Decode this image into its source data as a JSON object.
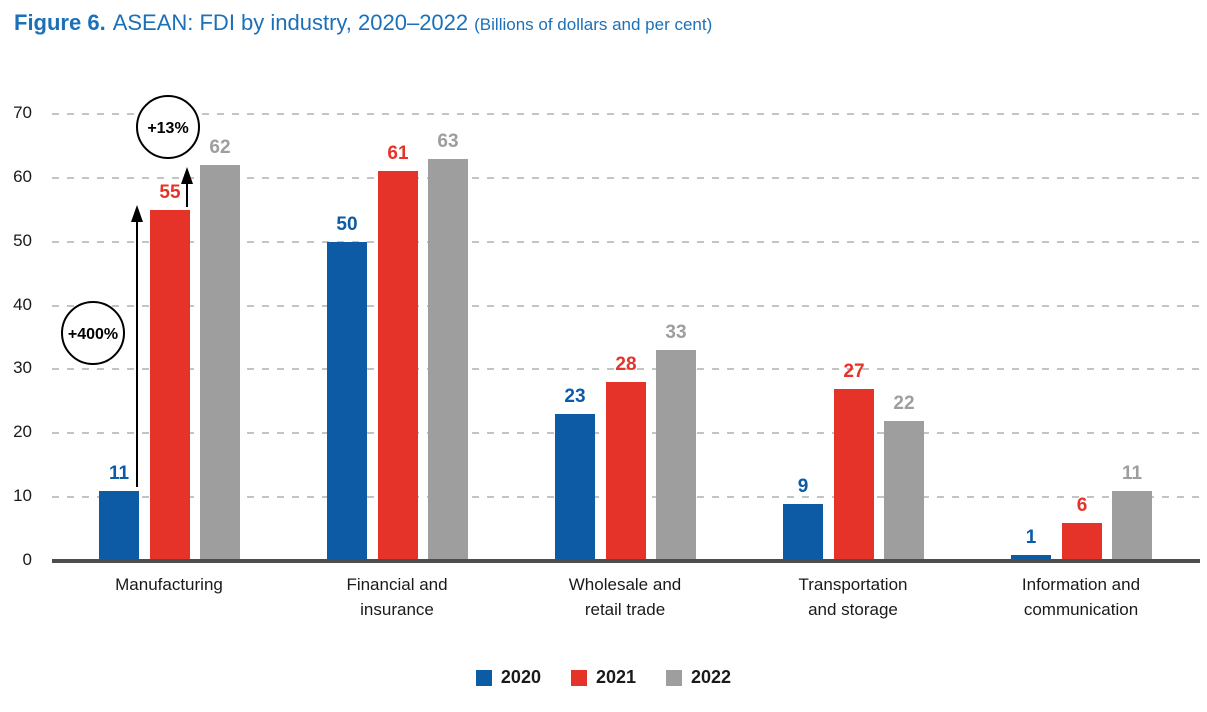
{
  "title": {
    "prefix": "Figure 6.",
    "main": "ASEAN: FDI by industry, 2020–2022",
    "unit": "(Billions of dollars and per cent)"
  },
  "colors": {
    "title_blue": "#1C70B8",
    "axis_text": "#1A1A1A",
    "axis_line": "#4D4D4D",
    "gridline": "#C4C4C4",
    "background": "#FFFFFF"
  },
  "chart_data": {
    "type": "bar",
    "title": "ASEAN: FDI by industry, 2020–2022",
    "unit_note": "Billions of dollars and per cent",
    "categories": [
      "Manufacturing",
      "Financial and\ninsurance",
      "Wholesale and\nretail trade",
      "Transportation\nand storage",
      "Information and\ncommunication"
    ],
    "series": [
      {
        "name": "2020",
        "color": "#0D5BA4",
        "values": [
          11,
          50,
          23,
          9,
          1
        ]
      },
      {
        "name": "2021",
        "color": "#E6332A",
        "values": [
          55,
          61,
          28,
          27,
          6
        ]
      },
      {
        "name": "2022",
        "color": "#9E9E9E",
        "values": [
          62,
          63,
          33,
          22,
          11
        ]
      }
    ],
    "ylim": [
      0,
      70
    ],
    "ytick_step": 10,
    "yticks": [
      0,
      10,
      20,
      30,
      40,
      50,
      60,
      70
    ],
    "grid": "horizontal-dashed",
    "legend_position": "bottom-center",
    "value_labels": true,
    "annotations": [
      {
        "text": "+400%",
        "refers_to": "Manufacturing change from 11 (2020) to 55 (2021)"
      },
      {
        "text": "+13%",
        "refers_to": "Manufacturing change from 55 (2021) to 62 (2022)"
      }
    ]
  }
}
